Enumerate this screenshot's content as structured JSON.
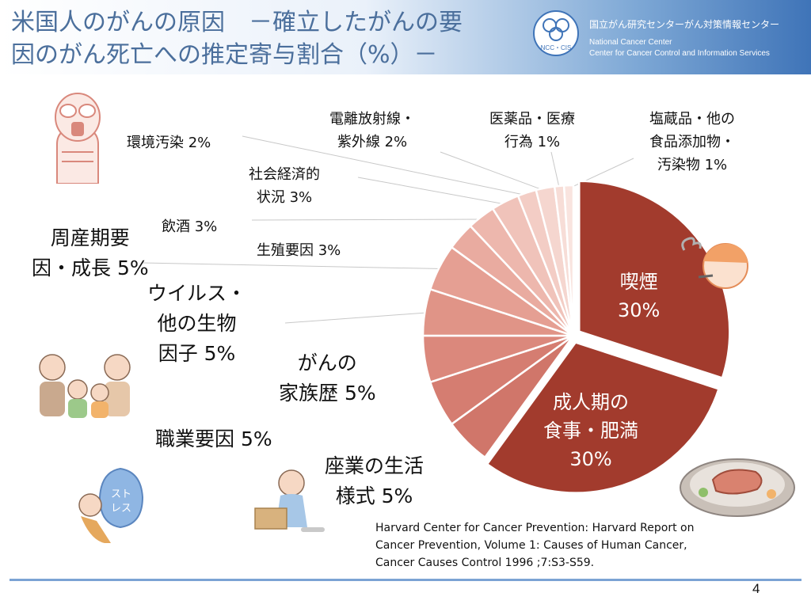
{
  "header": {
    "title_line1": "米国人のがんの原因　－確立したがんの要",
    "title_line2": "因のがん死亡への推定寄与割合（%）－",
    "logo_text": "NCC・CIS",
    "org_ja": "国立がん研究センターがん対策情報センター",
    "org_en1": "National Cancer Center",
    "org_en2": "Center for Cancer Control and Information Services"
  },
  "chart_data": {
    "type": "pie",
    "unit": "%",
    "start_angle": "12 o'clock, clockwise",
    "slices": [
      {
        "key": "smoking",
        "label": [
          "喫煙"
        ],
        "value": 30,
        "value_text": "30%",
        "color": "#a23b2d",
        "exploded": true,
        "label_inside": true
      },
      {
        "key": "diet",
        "label": [
          "成人期の",
          "食事・肥満"
        ],
        "value": 30,
        "value_text": "30%",
        "color": "#a23b2d",
        "exploded": true,
        "label_inside": true
      },
      {
        "key": "sedentary",
        "label": [
          "座業の生活",
          "様式"
        ],
        "value": 5,
        "value_text": "5%",
        "color": "#d0766a"
      },
      {
        "key": "occupational",
        "label": [
          "職業要因"
        ],
        "value": 5,
        "value_text": "5%",
        "color": "#d57d71"
      },
      {
        "key": "family_history",
        "label": [
          "がんの",
          "家族歴"
        ],
        "value": 5,
        "value_text": "5%",
        "color": "#db887c"
      },
      {
        "key": "virus",
        "label": [
          "ウイルス・",
          "他の生物",
          "因子"
        ],
        "value": 5,
        "value_text": "5%",
        "color": "#e09487"
      },
      {
        "key": "perinatal",
        "label": [
          "周産期要",
          "因・成長"
        ],
        "value": 5,
        "value_text": "5%",
        "color": "#e59f93"
      },
      {
        "key": "reproductive",
        "label": [
          "生殖要因"
        ],
        "value": 3,
        "value_text": "3%",
        "color": "#e9aba0"
      },
      {
        "key": "alcohol",
        "label": [
          "飲酒"
        ],
        "value": 3,
        "value_text": "3%",
        "color": "#edb7ad"
      },
      {
        "key": "socioeconomic",
        "label": [
          "社会経済的",
          "状況"
        ],
        "value": 3,
        "value_text": "3%",
        "color": "#f0c3ba"
      },
      {
        "key": "pollution",
        "label": [
          "環境汚染"
        ],
        "value": 2,
        "value_text": "2%",
        "color": "#f3cdc5"
      },
      {
        "key": "radiation",
        "label": [
          "電離放射線・",
          "紫外線"
        ],
        "value": 2,
        "value_text": "2%",
        "color": "#f5d6cf"
      },
      {
        "key": "medical",
        "label": [
          "医薬品・医療",
          "行為"
        ],
        "value": 1,
        "value_text": "1%",
        "color": "#f7ddd7"
      },
      {
        "key": "salt_additives",
        "label": [
          "塩蔵品・他の",
          "食品添加物・",
          "汚染物"
        ],
        "value": 1,
        "value_text": "1%",
        "color": "#f9e4df"
      }
    ]
  },
  "source": "Harvard Center for Cancer Prevention: Harvard Report on Cancer Prevention, Volume 1: Causes of Human Cancer, Cancer Causes Control 1996 ;7:S3-S59.",
  "page_number": "4",
  "illustration_text": {
    "stress_bag": [
      "スト",
      "レス"
    ]
  }
}
